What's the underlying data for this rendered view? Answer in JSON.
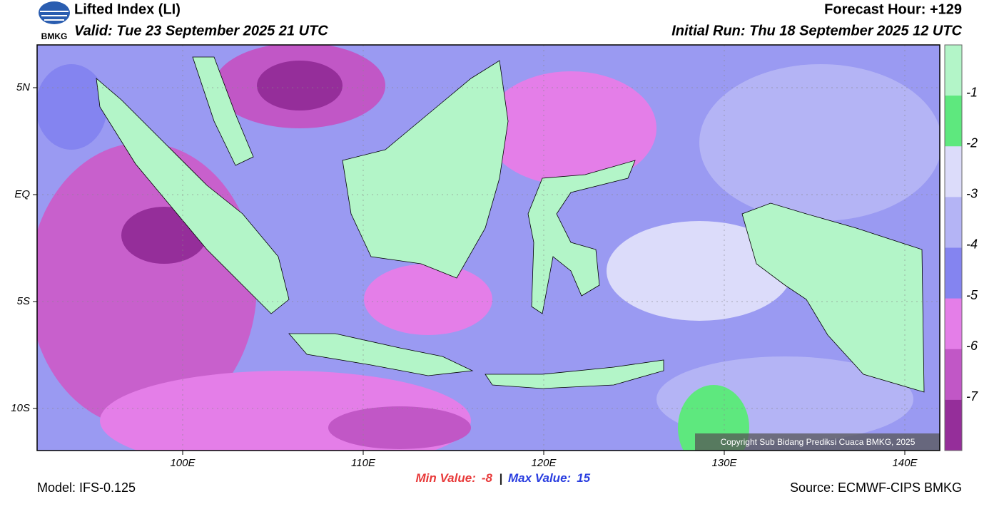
{
  "header": {
    "title": "Lifted Index (LI)",
    "valid": "Valid: Tue 23 September 2025 21 UTC",
    "forecast_hour": "Forecast Hour: +129",
    "initial_run": "Initial Run: Thu 18 September 2025 12 UTC",
    "logo_text": "BMKG"
  },
  "map": {
    "lat_labels": [
      "5N",
      "EQ",
      "5S",
      "10S"
    ],
    "lon_labels": [
      "100E",
      "110E",
      "120E",
      "130E",
      "140E"
    ],
    "copyright": "Copyright Sub Bidang Prediksi Cuaca BMKG, 2025"
  },
  "legend": {
    "ticks": [
      -1,
      -2,
      -3,
      -4,
      -5,
      -6,
      -7
    ],
    "colors": [
      "#b3f5c8",
      "#5ee87e",
      "#dcdcfa",
      "#b4b4f5",
      "#8484f0",
      "#e47ee8",
      "#c157c6",
      "#952e9a"
    ]
  },
  "stats": {
    "min_label": "Min Value:",
    "min_value": -8,
    "separator": "|",
    "max_label": "Max Value:",
    "max_value": 15
  },
  "footer": {
    "model": "Model: IFS-0.125",
    "source": "Source: ECMWF-CIPS BMKG"
  }
}
